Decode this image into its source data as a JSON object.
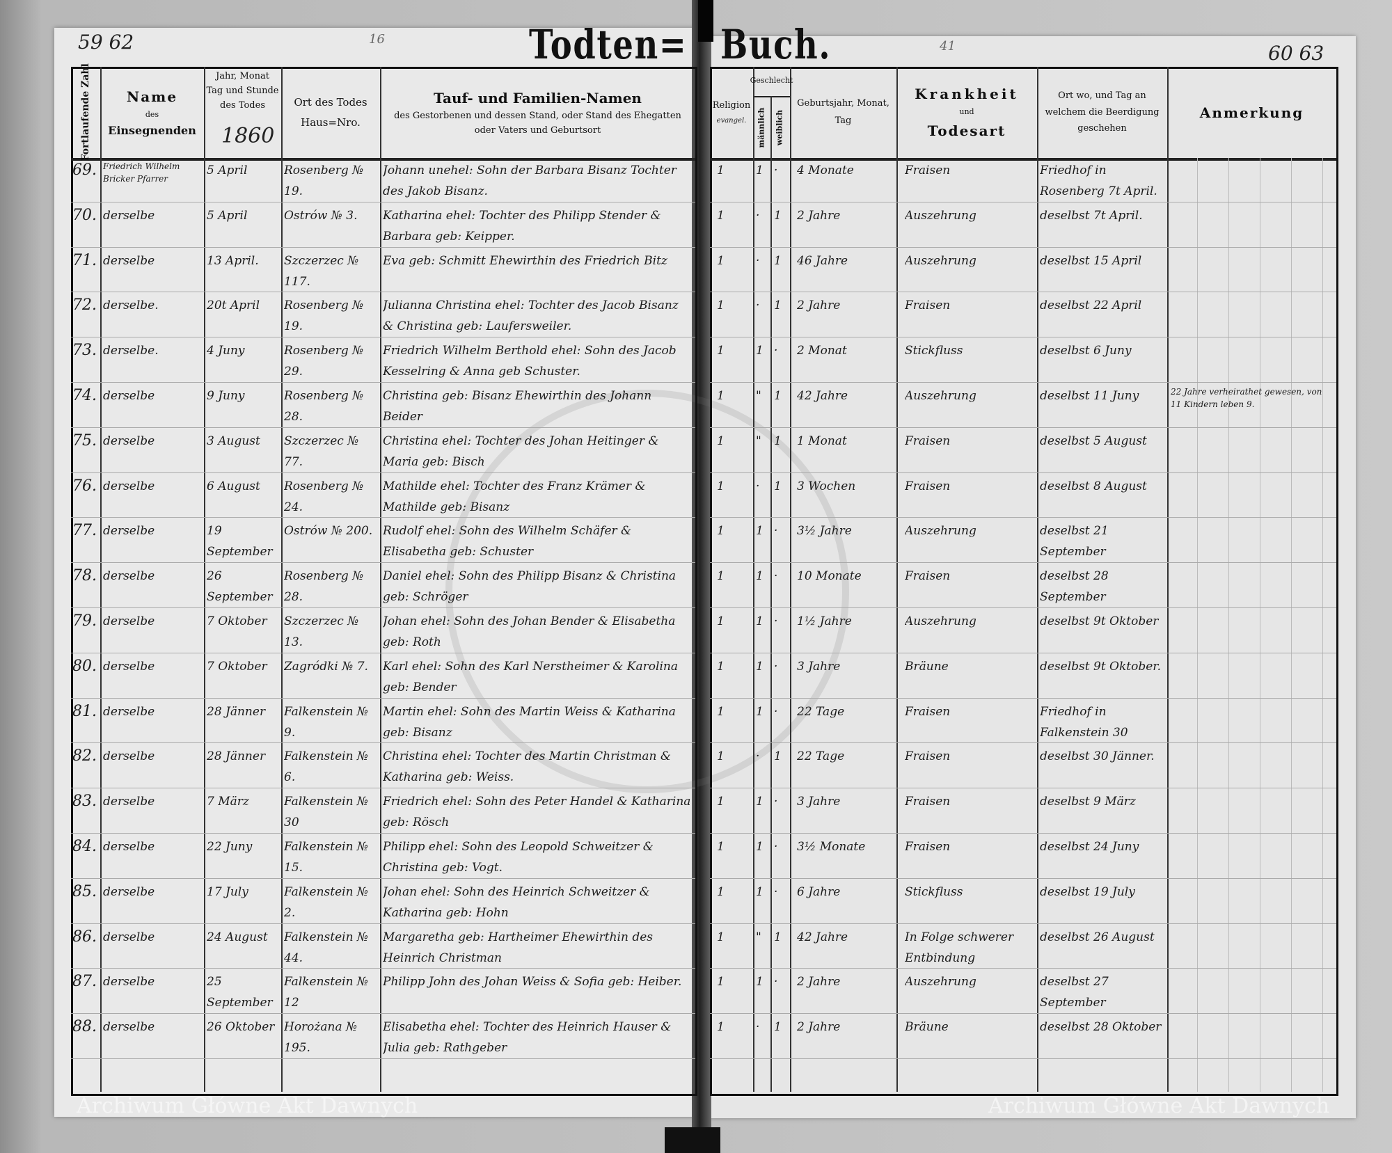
{
  "document": {
    "title_left": "Todten=",
    "title_right": "Buch.",
    "page_number_left": "59 62",
    "page_number_right": "60 63",
    "pencil_mark_left": "16",
    "pencil_mark_right": "41",
    "year": "1860",
    "watermark": "Archiwum Główne Akt Dawnych"
  },
  "headers": {
    "number": "Fortlaufende Zahl",
    "officiant_line1": "Name",
    "officiant_line2": "des",
    "officiant_line3": "Einsegnenden",
    "date_line1": "Jahr, Monat",
    "date_line2": "Tag und Stunde",
    "date_line3": "des Todes",
    "place_line1": "Ort des Todes",
    "place_line2": "Haus=Nro.",
    "names_line1": "Tauf- und Familien-Namen",
    "names_line2": "des Gestorbenen und dessen Stand, oder Stand des Ehegatten",
    "names_line3": "oder Vaters und Geburtsort",
    "religion": "Religion",
    "religion_sub": "evangel.",
    "sex": "Geschlecht",
    "male": "männlich",
    "female": "weiblich",
    "birth_line1": "Geburtsjahr, Monat,",
    "birth_line2": "Tag",
    "disease_line1": "Krankheit",
    "disease_line2": "und",
    "disease_line3": "Todesart",
    "burial_line1": "Ort wo, und Tag an",
    "burial_line2": "welchem die Beerdigung",
    "burial_line3": "geschehen",
    "remarks": "Anmerkung"
  },
  "rows": [
    {
      "no": "69.",
      "officiant": "Friedrich Wilhelm Bricker Pfarrer",
      "date": "5 April",
      "place": "Rosenberg № 19.",
      "names": "Johann unehel: Sohn der Barbara Bisanz Tochter des Jakob Bisanz.",
      "religion": "1",
      "male": "1",
      "female": "·",
      "age": "4 Monate",
      "cause": "Fraisen",
      "burial": "Friedhof in Rosenberg 7t April.",
      "remark": ""
    },
    {
      "no": "70.",
      "officiant": "derselbe",
      "date": "5 April",
      "place": "Ostrów № 3.",
      "names": "Katharina ehel: Tochter des Philipp Stender & Barbara geb: Keipper.",
      "religion": "1",
      "male": "·",
      "female": "1",
      "age": "2 Jahre",
      "cause": "Auszehrung",
      "burial": "deselbst 7t April.",
      "remark": ""
    },
    {
      "no": "71.",
      "officiant": "derselbe",
      "date": "13 April.",
      "place": "Szczerzec № 117.",
      "names": "Eva geb: Schmitt Ehewirthin des Friedrich Bitz",
      "religion": "1",
      "male": "·",
      "female": "1",
      "age": "46 Jahre",
      "cause": "Auszehrung",
      "burial": "deselbst 15 April",
      "remark": ""
    },
    {
      "no": "72.",
      "officiant": "derselbe.",
      "date": "20t April",
      "place": "Rosenberg № 19.",
      "names": "Julianna Christina ehel: Tochter des Jacob Bisanz & Christina geb: Laufersweiler.",
      "religion": "1",
      "male": "·",
      "female": "1",
      "age": "2 Jahre",
      "cause": "Fraisen",
      "burial": "deselbst 22 April",
      "remark": ""
    },
    {
      "no": "73.",
      "officiant": "derselbe.",
      "date": "4 Juny",
      "place": "Rosenberg № 29.",
      "names": "Friedrich Wilhelm Berthold ehel: Sohn des Jacob Kesselring & Anna geb Schuster.",
      "religion": "1",
      "male": "1",
      "female": "·",
      "age": "2 Monat",
      "cause": "Stickfluss",
      "burial": "deselbst 6 Juny",
      "remark": ""
    },
    {
      "no": "74.",
      "officiant": "derselbe",
      "date": "9 Juny",
      "place": "Rosenberg № 28.",
      "names": "Christina geb: Bisanz Ehewirthin des Johann Beider",
      "religion": "1",
      "male": "\"",
      "female": "1",
      "age": "42 Jahre",
      "cause": "Auszehrung",
      "burial": "deselbst 11 Juny",
      "remark": "22 Jahre verheirathet gewesen, von 11 Kindern leben 9."
    },
    {
      "no": "75.",
      "officiant": "derselbe",
      "date": "3 August",
      "place": "Szczerzec № 77.",
      "names": "Christina ehel: Tochter des Johan Heitinger & Maria geb: Bisch",
      "religion": "1",
      "male": "\"",
      "female": "1",
      "age": "1 Monat",
      "cause": "Fraisen",
      "burial": "deselbst 5 August",
      "remark": ""
    },
    {
      "no": "76.",
      "officiant": "derselbe",
      "date": "6 August",
      "place": "Rosenberg № 24.",
      "names": "Mathilde ehel: Tochter des Franz Krämer & Mathilde geb: Bisanz",
      "religion": "1",
      "male": "·",
      "female": "1",
      "age": "3 Wochen",
      "cause": "Fraisen",
      "burial": "deselbst 8 August",
      "remark": ""
    },
    {
      "no": "77.",
      "officiant": "derselbe",
      "date": "19 September",
      "place": "Ostrów № 200.",
      "names": "Rudolf ehel: Sohn des Wilhelm Schäfer & Elisabetha geb: Schuster",
      "religion": "1",
      "male": "1",
      "female": "·",
      "age": "3½ Jahre",
      "cause": "Auszehrung",
      "burial": "deselbst 21 September",
      "remark": ""
    },
    {
      "no": "78.",
      "officiant": "derselbe",
      "date": "26 September",
      "place": "Rosenberg № 28.",
      "names": "Daniel ehel: Sohn des Philipp Bisanz & Christina geb: Schröger",
      "religion": "1",
      "male": "1",
      "female": "·",
      "age": "10 Monate",
      "cause": "Fraisen",
      "burial": "deselbst 28 September",
      "remark": ""
    },
    {
      "no": "79.",
      "officiant": "derselbe",
      "date": "7 Oktober",
      "place": "Szczerzec № 13.",
      "names": "Johan ehel: Sohn des Johan Bender & Elisabetha geb: Roth",
      "religion": "1",
      "male": "1",
      "female": "·",
      "age": "1½ Jahre",
      "cause": "Auszehrung",
      "burial": "deselbst 9t Oktober",
      "remark": ""
    },
    {
      "no": "80.",
      "officiant": "derselbe",
      "date": "7 Oktober",
      "place": "Zagródki № 7.",
      "names": "Karl ehel: Sohn des Karl Nerstheimer & Karolina geb: Bender",
      "religion": "1",
      "male": "1",
      "female": "·",
      "age": "3 Jahre",
      "cause": "Bräune",
      "burial": "deselbst 9t Oktober.",
      "remark": ""
    },
    {
      "no": "81.",
      "officiant": "derselbe",
      "date": "28 Jänner",
      "place": "Falkenstein № 9.",
      "names": "Martin ehel: Sohn des Martin Weiss & Katharina geb: Bisanz",
      "religion": "1",
      "male": "1",
      "female": "·",
      "age": "22 Tage",
      "cause": "Fraisen",
      "burial": "Friedhof in Falkenstein 30 Jänner.",
      "remark": ""
    },
    {
      "no": "82.",
      "officiant": "derselbe",
      "date": "28 Jänner",
      "place": "Falkenstein № 6.",
      "names": "Christina ehel: Tochter des Martin Christman & Katharina geb: Weiss.",
      "religion": "1",
      "male": "·",
      "female": "1",
      "age": "22 Tage",
      "cause": "Fraisen",
      "burial": "deselbst 30 Jänner.",
      "remark": ""
    },
    {
      "no": "83.",
      "officiant": "derselbe",
      "date": "7 März",
      "place": "Falkenstein № 30",
      "names": "Friedrich ehel: Sohn des Peter Handel & Katharina geb: Rösch",
      "religion": "1",
      "male": "1",
      "female": "·",
      "age": "3 Jahre",
      "cause": "Fraisen",
      "burial": "deselbst 9 März",
      "remark": ""
    },
    {
      "no": "84.",
      "officiant": "derselbe",
      "date": "22 Juny",
      "place": "Falkenstein № 15.",
      "names": "Philipp ehel: Sohn des Leopold Schweitzer & Christina geb: Vogt.",
      "religion": "1",
      "male": "1",
      "female": "·",
      "age": "3½ Monate",
      "cause": "Fraisen",
      "burial": "deselbst 24 Juny",
      "remark": ""
    },
    {
      "no": "85.",
      "officiant": "derselbe",
      "date": "17 July",
      "place": "Falkenstein № 2.",
      "names": "Johan ehel: Sohn des Heinrich Schweitzer & Katharina geb: Hohn",
      "religion": "1",
      "male": "1",
      "female": "·",
      "age": "6 Jahre",
      "cause": "Stickfluss",
      "burial": "deselbst 19 July",
      "remark": ""
    },
    {
      "no": "86.",
      "officiant": "derselbe",
      "date": "24 August",
      "place": "Falkenstein № 44.",
      "names": "Margaretha geb: Hartheimer Ehewirthin des Heinrich Christman",
      "religion": "1",
      "male": "\"",
      "female": "1",
      "age": "42 Jahre",
      "cause": "In Folge schwerer Entbindung",
      "burial": "deselbst 26 August",
      "remark": ""
    },
    {
      "no": "87.",
      "officiant": "derselbe",
      "date": "25 September",
      "place": "Falkenstein № 12",
      "names": "Philipp John des Johan Weiss & Sofia geb: Heiber.",
      "religion": "1",
      "male": "1",
      "female": "·",
      "age": "2 Jahre",
      "cause": "Auszehrung",
      "burial": "deselbst 27 September",
      "remark": ""
    },
    {
      "no": "88.",
      "officiant": "derselbe",
      "date": "26 Oktober",
      "place": "Horożana № 195.",
      "names": "Elisabetha ehel: Tochter des Heinrich Hauser & Julia geb: Rathgeber",
      "religion": "1",
      "male": "·",
      "female": "1",
      "age": "2 Jahre",
      "cause": "Bräune",
      "burial": "deselbst 28 Oktober",
      "remark": ""
    }
  ]
}
